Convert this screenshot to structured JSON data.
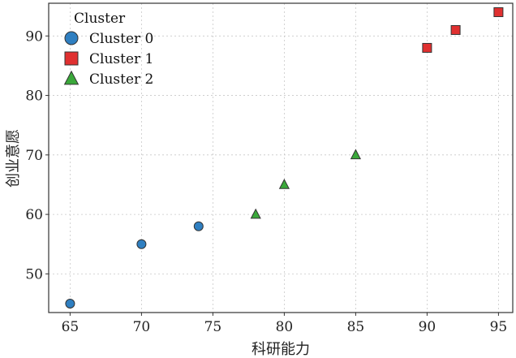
{
  "chart_data": {
    "type": "scatter",
    "xlabel": "科研能力",
    "ylabel": "创业意愿",
    "xlim": [
      63.5,
      96.0
    ],
    "ylim": [
      43.5,
      95.5
    ],
    "x_ticks": [
      65,
      70,
      75,
      80,
      85,
      90,
      95
    ],
    "y_ticks": [
      50,
      60,
      70,
      80,
      90
    ],
    "grid": true,
    "legend": {
      "title": "Cluster",
      "placement": "top-left"
    },
    "series": [
      {
        "name": "Cluster 0",
        "marker": "circle",
        "color": "#2f7fc1",
        "points": [
          [
            65,
            45
          ],
          [
            70,
            55
          ],
          [
            74,
            58
          ]
        ]
      },
      {
        "name": "Cluster 1",
        "marker": "square",
        "color": "#e03030",
        "points": [
          [
            90,
            88
          ],
          [
            92,
            91
          ],
          [
            95,
            94
          ]
        ]
      },
      {
        "name": "Cluster 2",
        "marker": "triangle",
        "color": "#3aa83a",
        "points": [
          [
            78,
            60
          ],
          [
            80,
            65
          ],
          [
            85,
            70
          ]
        ]
      }
    ]
  }
}
